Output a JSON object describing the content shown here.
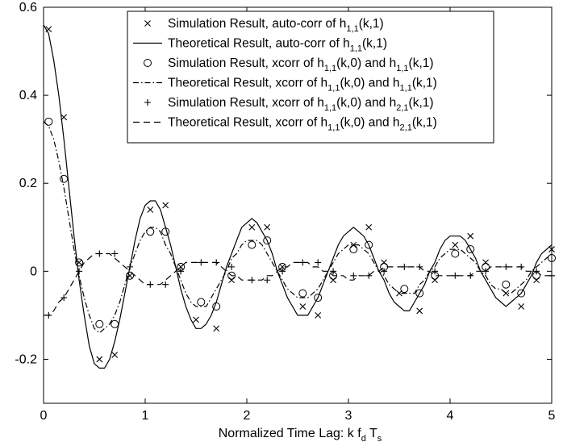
{
  "chart_data": {
    "type": "line",
    "xlabel": "Normalized Time Lag:  k f_d T_s",
    "ylabel": "",
    "title": "",
    "xlim": [
      0,
      5
    ],
    "ylim": [
      -0.3,
      0.6
    ],
    "xticks": [
      0,
      1,
      2,
      3,
      4,
      5
    ],
    "yticks": [
      -0.2,
      0,
      0.2,
      0.4,
      0.6
    ],
    "xtick_labels": [
      "0",
      "1",
      "2",
      "3",
      "4",
      "5"
    ],
    "ytick_labels": [
      "-0.2",
      "0",
      "0.2",
      "0.4",
      "0.6"
    ],
    "grid": false,
    "legend_position": "top-right",
    "series": [
      {
        "name": "Simulation  Result, auto-corr of h_{1,1}(k,1)",
        "style": "marker-x",
        "x": [
          0.05,
          0.2,
          0.35,
          0.55,
          0.7,
          0.85,
          1.05,
          1.2,
          1.35,
          1.5,
          1.7,
          1.85,
          2.05,
          2.2,
          2.35,
          2.55,
          2.7,
          2.85,
          3.05,
          3.2,
          3.35,
          3.5,
          3.7,
          3.85,
          4.05,
          4.2,
          4.35,
          4.55,
          4.7,
          4.85,
          5.0
        ],
        "y": [
          0.55,
          0.35,
          0.02,
          -0.2,
          -0.19,
          -0.01,
          0.14,
          0.15,
          0.01,
          -0.11,
          -0.13,
          -0.02,
          0.1,
          0.1,
          0.01,
          -0.08,
          -0.1,
          -0.02,
          0.06,
          0.1,
          0.02,
          -0.05,
          -0.09,
          -0.02,
          0.06,
          0.08,
          0.02,
          -0.05,
          -0.08,
          -0.02,
          0.05
        ]
      },
      {
        "name": "Theoretical Result, auto-corr of h_{1,1}(k,1)",
        "style": "solid",
        "x": [
          0,
          0.05,
          0.1,
          0.15,
          0.2,
          0.25,
          0.3,
          0.35,
          0.4,
          0.45,
          0.5,
          0.55,
          0.6,
          0.65,
          0.7,
          0.75,
          0.8,
          0.85,
          0.9,
          0.95,
          1.0,
          1.05,
          1.1,
          1.15,
          1.2,
          1.25,
          1.3,
          1.35,
          1.4,
          1.45,
          1.5,
          1.55,
          1.6,
          1.65,
          1.7,
          1.75,
          1.8,
          1.85,
          1.9,
          1.95,
          2.0,
          2.05,
          2.1,
          2.15,
          2.2,
          2.25,
          2.3,
          2.35,
          2.4,
          2.45,
          2.5,
          2.55,
          2.6,
          2.65,
          2.7,
          2.75,
          2.8,
          2.85,
          2.9,
          2.95,
          3.0,
          3.05,
          3.1,
          3.15,
          3.2,
          3.25,
          3.3,
          3.35,
          3.4,
          3.45,
          3.5,
          3.55,
          3.6,
          3.65,
          3.7,
          3.75,
          3.8,
          3.85,
          3.9,
          3.95,
          4.0,
          4.05,
          4.1,
          4.15,
          4.2,
          4.25,
          4.3,
          4.35,
          4.4,
          4.45,
          4.5,
          4.55,
          4.6,
          4.65,
          4.7,
          4.75,
          4.8,
          4.85,
          4.9,
          4.95,
          5.0
        ],
        "y": [
          0.56,
          0.54,
          0.48,
          0.4,
          0.3,
          0.19,
          0.08,
          -0.02,
          -0.1,
          -0.17,
          -0.21,
          -0.22,
          -0.22,
          -0.2,
          -0.16,
          -0.11,
          -0.05,
          0.01,
          0.07,
          0.12,
          0.15,
          0.16,
          0.16,
          0.14,
          0.1,
          0.06,
          0.01,
          -0.04,
          -0.08,
          -0.11,
          -0.13,
          -0.13,
          -0.12,
          -0.1,
          -0.07,
          -0.03,
          0.01,
          0.04,
          0.07,
          0.1,
          0.11,
          0.12,
          0.11,
          0.09,
          0.07,
          0.04,
          0.0,
          -0.03,
          -0.06,
          -0.08,
          -0.1,
          -0.1,
          -0.1,
          -0.08,
          -0.06,
          -0.03,
          0.0,
          0.03,
          0.06,
          0.08,
          0.09,
          0.1,
          0.09,
          0.08,
          0.06,
          0.03,
          0.0,
          -0.02,
          -0.05,
          -0.07,
          -0.08,
          -0.09,
          -0.09,
          -0.07,
          -0.05,
          -0.03,
          0.0,
          0.02,
          0.05,
          0.07,
          0.08,
          0.08,
          0.08,
          0.07,
          0.05,
          0.03,
          0.0,
          -0.02,
          -0.04,
          -0.06,
          -0.07,
          -0.08,
          -0.07,
          -0.06,
          -0.05,
          -0.03,
          -0.01,
          0.02,
          0.04,
          0.05,
          0.06
        ]
      },
      {
        "name": "Simulation  Result, xcorr of h_{1,1}(k,0) and h_{1,1}(k,1)",
        "style": "marker-o",
        "x": [
          0.05,
          0.2,
          0.35,
          0.55,
          0.7,
          0.85,
          1.05,
          1.2,
          1.35,
          1.55,
          1.7,
          1.85,
          2.05,
          2.2,
          2.35,
          2.55,
          2.7,
          2.85,
          3.05,
          3.2,
          3.35,
          3.55,
          3.7,
          3.85,
          4.05,
          4.2,
          4.35,
          4.55,
          4.7,
          4.85,
          5.0
        ],
        "y": [
          0.34,
          0.21,
          0.02,
          -0.12,
          -0.12,
          -0.01,
          0.09,
          0.09,
          0.01,
          -0.07,
          -0.08,
          -0.01,
          0.06,
          0.07,
          0.01,
          -0.05,
          -0.06,
          -0.01,
          0.05,
          0.06,
          0.01,
          -0.04,
          -0.05,
          -0.01,
          0.04,
          0.05,
          0.01,
          -0.03,
          -0.05,
          -0.01,
          0.03
        ]
      },
      {
        "name": "Theoretical Result, xcorr of h_{1,1}(k,0) and h_{1,1}(k,1)",
        "style": "dashdot",
        "x": [
          0,
          0.05,
          0.1,
          0.15,
          0.2,
          0.25,
          0.3,
          0.35,
          0.4,
          0.45,
          0.5,
          0.55,
          0.6,
          0.65,
          0.7,
          0.75,
          0.8,
          0.85,
          0.9,
          0.95,
          1.0,
          1.05,
          1.1,
          1.15,
          1.2,
          1.25,
          1.3,
          1.35,
          1.4,
          1.45,
          1.5,
          1.55,
          1.6,
          1.65,
          1.7,
          1.75,
          1.8,
          1.85,
          1.9,
          1.95,
          2.0,
          2.05,
          2.1,
          2.15,
          2.2,
          2.25,
          2.3,
          2.35,
          2.4,
          2.45,
          2.5,
          2.55,
          2.6,
          2.65,
          2.7,
          2.75,
          2.8,
          2.85,
          2.9,
          2.95,
          3.0,
          3.05,
          3.1,
          3.15,
          3.2,
          3.25,
          3.3,
          3.35,
          3.4,
          3.45,
          3.5,
          3.55,
          3.6,
          3.65,
          3.7,
          3.75,
          3.8,
          3.85,
          3.9,
          3.95,
          4.0,
          4.05,
          4.1,
          4.15,
          4.2,
          4.25,
          4.3,
          4.35,
          4.4,
          4.45,
          4.5,
          4.55,
          4.6,
          4.65,
          4.7,
          4.75,
          4.8,
          4.85,
          4.9,
          4.95,
          5.0
        ],
        "y": [
          0.34,
          0.33,
          0.3,
          0.25,
          0.19,
          0.12,
          0.05,
          -0.01,
          -0.06,
          -0.1,
          -0.13,
          -0.14,
          -0.13,
          -0.12,
          -0.1,
          -0.07,
          -0.03,
          0.01,
          0.04,
          0.07,
          0.09,
          0.1,
          0.1,
          0.09,
          0.06,
          0.04,
          0.01,
          -0.02,
          -0.05,
          -0.07,
          -0.08,
          -0.08,
          -0.08,
          -0.06,
          -0.04,
          -0.02,
          0.0,
          0.03,
          0.04,
          0.06,
          0.07,
          0.07,
          0.07,
          0.06,
          0.04,
          0.02,
          0.0,
          -0.02,
          -0.04,
          -0.05,
          -0.06,
          -0.06,
          -0.06,
          -0.05,
          -0.04,
          -0.02,
          0.0,
          0.02,
          0.04,
          0.05,
          0.06,
          0.06,
          0.06,
          0.05,
          0.04,
          0.02,
          0.0,
          -0.01,
          -0.03,
          -0.04,
          -0.05,
          -0.05,
          -0.05,
          -0.05,
          -0.03,
          -0.02,
          0.0,
          0.01,
          0.03,
          0.04,
          0.05,
          0.05,
          0.05,
          0.04,
          0.03,
          0.02,
          0.0,
          -0.01,
          -0.03,
          -0.04,
          -0.04,
          -0.05,
          -0.05,
          -0.04,
          -0.03,
          -0.02,
          0.0,
          0.01,
          0.02,
          0.03,
          0.04
        ]
      },
      {
        "name": "Simulation  Result, xcorr of h_{1,1}(k,0) and h_{2,1}(k,1)",
        "style": "marker-plus",
        "x": [
          0.05,
          0.2,
          0.35,
          0.55,
          0.7,
          0.85,
          1.05,
          1.2,
          1.35,
          1.55,
          1.7,
          1.85,
          2.05,
          2.2,
          2.35,
          2.55,
          2.7,
          2.85,
          3.05,
          3.2,
          3.35,
          3.55,
          3.7,
          3.85,
          4.05,
          4.2,
          4.35,
          4.55,
          4.7,
          4.85,
          5.0
        ],
        "y": [
          -0.1,
          -0.06,
          0.0,
          0.04,
          0.04,
          0.01,
          -0.03,
          -0.03,
          0.0,
          0.02,
          0.02,
          0.01,
          -0.02,
          -0.02,
          0.0,
          0.02,
          0.02,
          0.0,
          -0.01,
          -0.01,
          0.0,
          0.01,
          0.01,
          0.0,
          -0.01,
          -0.01,
          0.0,
          0.01,
          0.01,
          0.0,
          -0.01
        ]
      },
      {
        "name": "Theoretical Result, xcorr of h_{1,1}(k,0) and h_{2,1}(k,1)",
        "style": "dashed",
        "x": [
          0,
          0.05,
          0.1,
          0.15,
          0.2,
          0.25,
          0.3,
          0.35,
          0.4,
          0.45,
          0.5,
          0.55,
          0.6,
          0.65,
          0.7,
          0.75,
          0.8,
          0.85,
          0.9,
          0.95,
          1.0,
          1.05,
          1.1,
          1.15,
          1.2,
          1.25,
          1.3,
          1.35,
          1.4,
          1.45,
          1.5,
          1.55,
          1.6,
          1.65,
          1.7,
          1.75,
          1.8,
          1.85,
          1.9,
          1.95,
          2.0,
          2.05,
          2.1,
          2.15,
          2.2,
          2.25,
          2.3,
          2.35,
          2.4,
          2.45,
          2.5,
          2.55,
          2.6,
          2.65,
          2.7,
          2.75,
          2.8,
          2.85,
          2.9,
          2.95,
          3.0,
          3.05,
          3.1,
          3.15,
          3.2,
          3.25,
          3.3,
          3.35,
          3.4,
          3.45,
          3.5,
          3.55,
          3.6,
          3.65,
          3.7,
          3.75,
          3.8,
          3.85,
          3.9,
          3.95,
          4.0,
          4.05,
          4.1,
          4.15,
          4.2,
          4.25,
          4.3,
          4.35,
          4.4,
          4.45,
          4.5,
          4.55,
          4.6,
          4.65,
          4.7,
          4.75,
          4.8,
          4.85,
          4.9,
          4.95,
          5.0
        ],
        "y": [
          -0.1,
          -0.1,
          -0.09,
          -0.07,
          -0.06,
          -0.04,
          -0.02,
          0.0,
          0.02,
          0.03,
          0.04,
          0.04,
          0.04,
          0.04,
          0.03,
          0.02,
          0.01,
          0.0,
          -0.01,
          -0.02,
          -0.03,
          -0.03,
          -0.03,
          -0.03,
          -0.02,
          -0.01,
          0.0,
          0.01,
          0.02,
          0.02,
          0.02,
          0.02,
          0.02,
          0.02,
          0.02,
          0.01,
          0.0,
          -0.01,
          -0.01,
          -0.02,
          -0.02,
          -0.02,
          -0.02,
          -0.02,
          -0.01,
          -0.01,
          0.0,
          0.01,
          0.01,
          0.02,
          0.02,
          0.02,
          0.02,
          0.01,
          0.01,
          0.0,
          0.0,
          -0.01,
          -0.01,
          -0.01,
          -0.02,
          -0.02,
          -0.01,
          -0.01,
          -0.01,
          0.0,
          0.0,
          0.01,
          0.01,
          0.01,
          0.01,
          0.01,
          0.01,
          0.01,
          0.01,
          0.0,
          0.0,
          -0.01,
          -0.01,
          -0.01,
          -0.01,
          -0.01,
          -0.01,
          -0.01,
          -0.01,
          0.0,
          0.0,
          0.0,
          0.01,
          0.01,
          0.01,
          0.01,
          0.01,
          0.01,
          0.01,
          0.0,
          0.0,
          0.0,
          -0.01,
          -0.01,
          -0.01
        ]
      }
    ]
  }
}
